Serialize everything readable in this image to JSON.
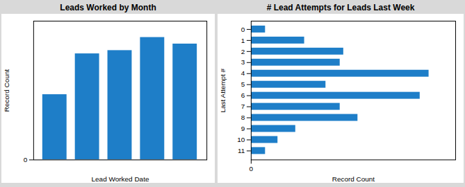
{
  "chart_data": [
    {
      "type": "bar",
      "title": "Leads Worked by Month",
      "xlabel": "Lead Worked Date",
      "ylabel": "Record Count",
      "categories": [
        null,
        null,
        null,
        null,
        null
      ],
      "values": [
        40,
        65,
        67,
        75,
        71
      ],
      "color": "#1e7ec8",
      "ylim": [
        0,
        85
      ],
      "yticks": [
        0
      ],
      "grid": true,
      "tick_labels": "y"
    },
    {
      "type": "bar",
      "orientation": "horizontal",
      "title": "# Lead Attempts for Leads Last Week",
      "xlabel": "Record Count",
      "ylabel": "Last Attempt #",
      "categories": [
        "0",
        "1",
        "2",
        "3",
        "4",
        "5",
        "6",
        "7",
        "8",
        "9",
        "10",
        "11"
      ],
      "values": [
        8,
        30,
        52,
        50,
        100,
        42,
        95,
        50,
        60,
        25,
        15,
        8
      ],
      "color": "#1e7ec8",
      "xlim": [
        0,
        115
      ],
      "xticks": [
        0
      ],
      "grid": true
    }
  ]
}
